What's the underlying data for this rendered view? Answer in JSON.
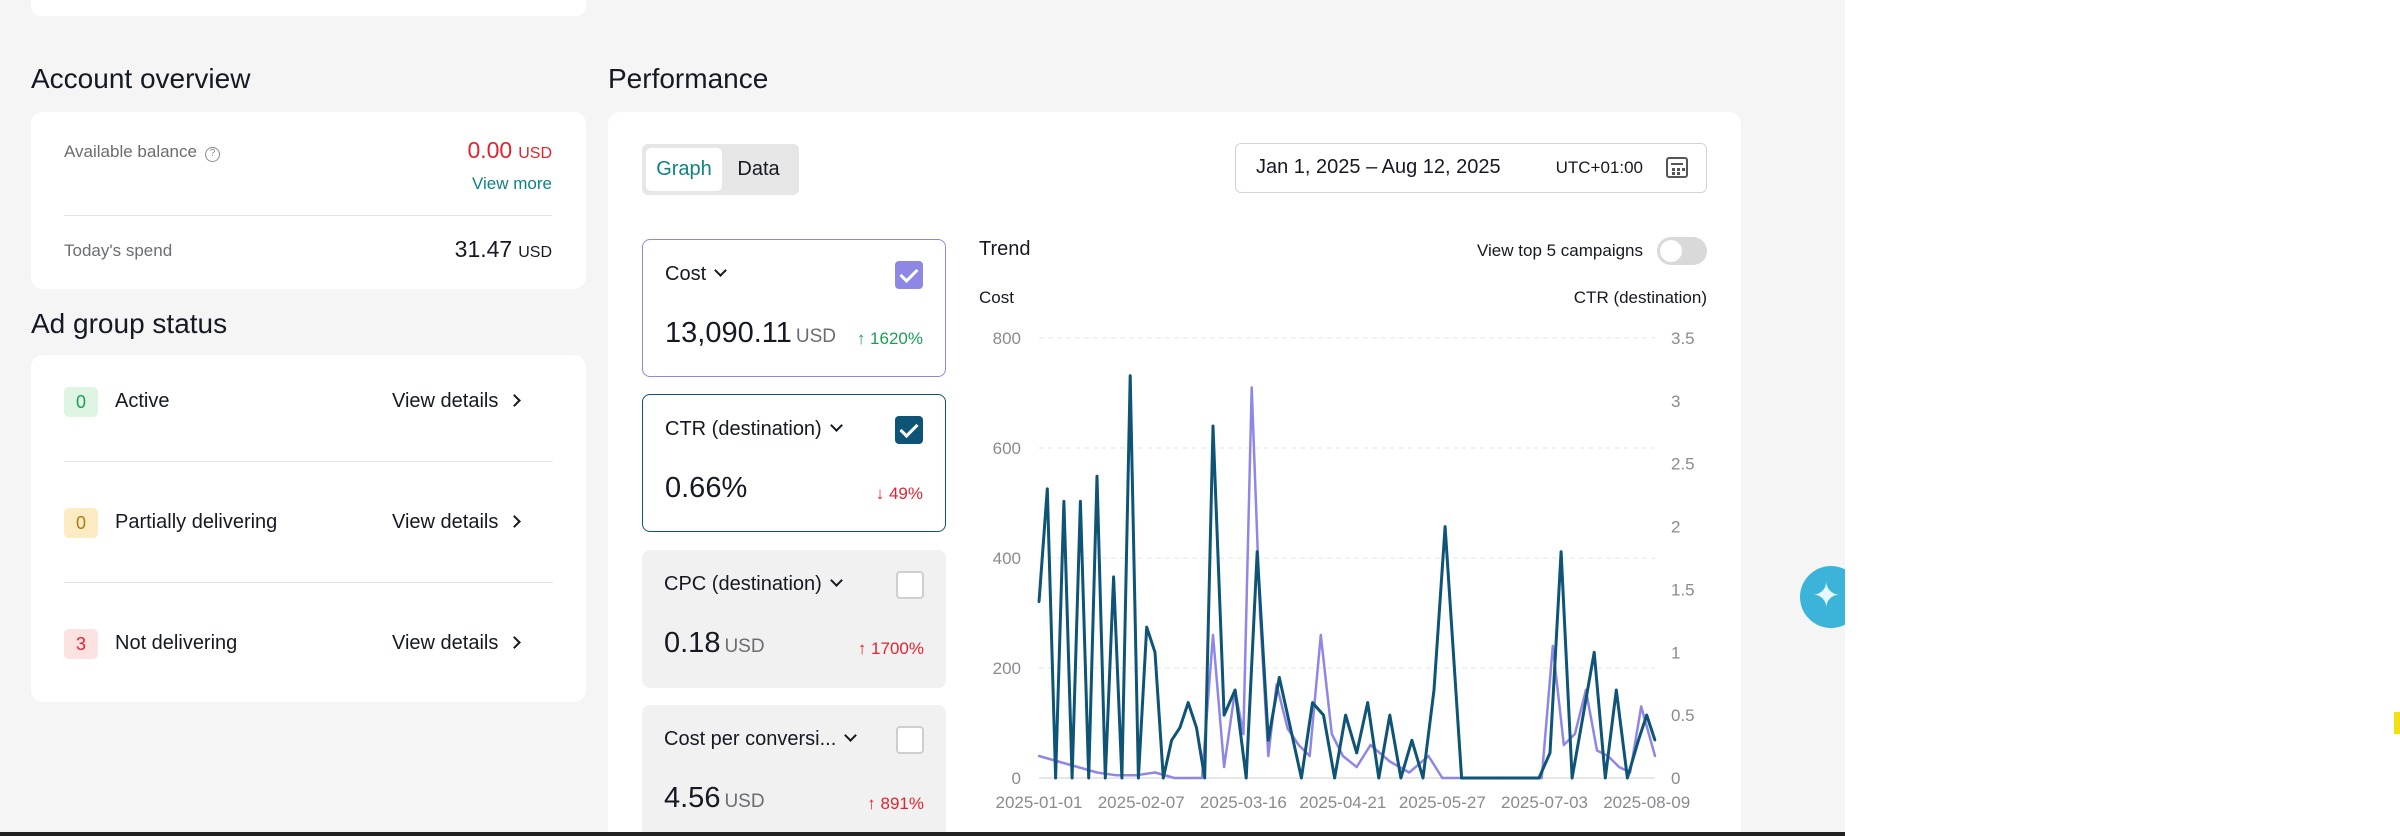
{
  "account_overview": {
    "title": "Account overview",
    "available_balance_label": "Available balance",
    "help_icon": "help-circle-icon",
    "balance_value": "0.00",
    "balance_unit": "USD",
    "view_more": "View more",
    "todays_spend_label": "Today's spend",
    "todays_spend_value": "31.47",
    "todays_spend_unit": "USD"
  },
  "ad_group_status": {
    "title": "Ad group status",
    "items": [
      {
        "count": "0",
        "label": "Active",
        "action": "View details"
      },
      {
        "count": "0",
        "label": "Partially delivering",
        "action": "View details"
      },
      {
        "count": "3",
        "label": "Not delivering",
        "action": "View details"
      }
    ]
  },
  "performance": {
    "title": "Performance",
    "tabs": {
      "graph": "Graph",
      "data": "Data"
    },
    "date_range": "Jan 1, 2025 – Aug 12, 2025",
    "timezone": "UTC+01:00",
    "calendar_icon": "calendar-icon",
    "metrics": [
      {
        "name": "Cost",
        "value": "13,090.11",
        "unit": "USD",
        "change": "↑ 1620%",
        "checked": true
      },
      {
        "name": "CTR (destination)",
        "value": "0.66%",
        "unit": "",
        "change": "↓ 49%",
        "checked": true
      },
      {
        "name": "CPC (destination)",
        "value": "0.18",
        "unit": "USD",
        "change": "↑ 1700%",
        "checked": false
      },
      {
        "name": "Cost per conversi...",
        "value": "4.56",
        "unit": "USD",
        "change": "↑ 891%",
        "checked": false
      }
    ],
    "trend_title": "Trend",
    "top5_toggle_label": "View top 5 campaigns",
    "top5_toggle_on": false
  },
  "chart_data": {
    "type": "line",
    "ylabel_left": "Cost",
    "ylabel_right": "CTR (destination)",
    "y_left_ticks": [
      "0",
      "200",
      "400",
      "600",
      "800"
    ],
    "y_left_lim": [
      0,
      800
    ],
    "y_right_ticks": [
      "0",
      "0.5",
      "1",
      "1.5",
      "2",
      "2.5",
      "3",
      "3.5"
    ],
    "y_right_lim": [
      0,
      3.5
    ],
    "x_tick_labels": [
      "2025-01-01",
      "2025-02-07",
      "2025-03-16",
      "2025-04-21",
      "2025-05-27",
      "2025-07-03",
      "2025-08-09"
    ],
    "grid": true,
    "series": [
      {
        "name": "Cost",
        "axis": "left",
        "color": "#8f87e6",
        "x": [
          "2025-01-01",
          "2025-01-08",
          "2025-01-15",
          "2025-01-22",
          "2025-01-29",
          "2025-02-05",
          "2025-02-12",
          "2025-02-19",
          "2025-02-26",
          "2025-03-01",
          "2025-03-05",
          "2025-03-09",
          "2025-03-13",
          "2025-03-16",
          "2025-03-19",
          "2025-03-22",
          "2025-03-25",
          "2025-03-28",
          "2025-04-01",
          "2025-04-05",
          "2025-04-09",
          "2025-04-13",
          "2025-04-17",
          "2025-04-21",
          "2025-04-26",
          "2025-05-01",
          "2025-05-08",
          "2025-05-15",
          "2025-05-22",
          "2025-05-27",
          "2025-06-03",
          "2025-06-10",
          "2025-06-17",
          "2025-06-24",
          "2025-06-28",
          "2025-07-02",
          "2025-07-06",
          "2025-07-10",
          "2025-07-14",
          "2025-07-18",
          "2025-07-22",
          "2025-07-26",
          "2025-07-30",
          "2025-08-03",
          "2025-08-07",
          "2025-08-12"
        ],
        "values": [
          40,
          30,
          20,
          10,
          5,
          5,
          10,
          0,
          0,
          0,
          260,
          20,
          160,
          80,
          710,
          300,
          40,
          170,
          90,
          60,
          40,
          260,
          80,
          40,
          20,
          60,
          30,
          10,
          40,
          0,
          0,
          0,
          0,
          0,
          0,
          0,
          240,
          60,
          80,
          160,
          50,
          40,
          20,
          10,
          130,
          40
        ]
      },
      {
        "name": "CTR (destination)",
        "axis": "right",
        "color": "#0e5476",
        "x": [
          "2025-01-01",
          "2025-01-04",
          "2025-01-07",
          "2025-01-10",
          "2025-01-13",
          "2025-01-16",
          "2025-01-19",
          "2025-01-22",
          "2025-01-25",
          "2025-01-28",
          "2025-01-31",
          "2025-02-03",
          "2025-02-06",
          "2025-02-09",
          "2025-02-12",
          "2025-02-15",
          "2025-02-18",
          "2025-02-21",
          "2025-02-24",
          "2025-02-27",
          "2025-03-02",
          "2025-03-05",
          "2025-03-09",
          "2025-03-13",
          "2025-03-17",
          "2025-03-21",
          "2025-03-25",
          "2025-03-29",
          "2025-04-02",
          "2025-04-06",
          "2025-04-10",
          "2025-04-14",
          "2025-04-18",
          "2025-04-22",
          "2025-04-26",
          "2025-04-30",
          "2025-05-04",
          "2025-05-08",
          "2025-05-12",
          "2025-05-16",
          "2025-05-20",
          "2025-05-24",
          "2025-05-28",
          "2025-06-03",
          "2025-06-10",
          "2025-06-17",
          "2025-06-24",
          "2025-07-01",
          "2025-07-05",
          "2025-07-09",
          "2025-07-13",
          "2025-07-17",
          "2025-07-21",
          "2025-07-25",
          "2025-07-29",
          "2025-08-02",
          "2025-08-06",
          "2025-08-09",
          "2025-08-12"
        ],
        "values": [
          1.4,
          2.3,
          0,
          2.2,
          0,
          2.2,
          0,
          2.4,
          0,
          1.6,
          0,
          3.2,
          0,
          1.2,
          1.0,
          0,
          0.3,
          0.4,
          0.6,
          0.4,
          0,
          2.8,
          0.5,
          0.7,
          0,
          1.8,
          0.3,
          0.8,
          0.4,
          0,
          0.6,
          0.5,
          0,
          0.5,
          0.2,
          0.6,
          0,
          0.5,
          0,
          0.3,
          0,
          0.7,
          2.0,
          0,
          0,
          0,
          0,
          0,
          0.2,
          1.8,
          0,
          0.5,
          1.0,
          0,
          0.7,
          0,
          0.3,
          0.5,
          0.3
        ]
      }
    ]
  }
}
